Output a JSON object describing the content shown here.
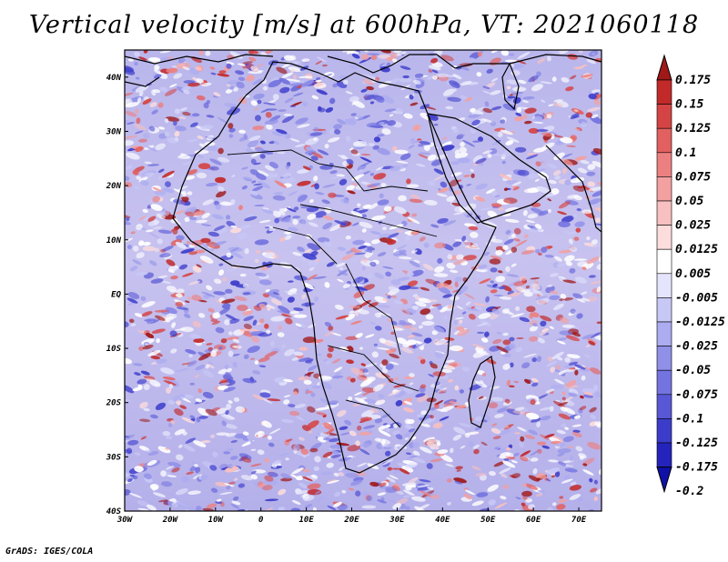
{
  "title": "Vertical velocity [m/s] at 600hPa, VT: 2021060118",
  "credit": "GrADS: IGES/COLA",
  "map": {
    "lat_ticks": [
      "40N",
      "30N",
      "20N",
      "10N",
      "EQ",
      "10S",
      "20S",
      "30S",
      "40S"
    ],
    "lon_ticks": [
      "30W",
      "20W",
      "10W",
      "0",
      "10E",
      "20E",
      "30E",
      "40E",
      "50E",
      "60E",
      "70E"
    ],
    "lat_range": [
      -40,
      45
    ],
    "lon_range": [
      -30,
      75
    ]
  },
  "colorbar": {
    "levels": [
      "0.175",
      "0.15",
      "0.125",
      "0.1",
      "0.075",
      "0.05",
      "0.025",
      "0.0125",
      "0.005",
      "-0.005",
      "-0.0125",
      "-0.025",
      "-0.05",
      "-0.075",
      "-0.1",
      "-0.125",
      "-0.175",
      "-0.2"
    ],
    "colors": [
      "#a01818",
      "#c22a2a",
      "#d54444",
      "#e26060",
      "#ec8080",
      "#f3a0a0",
      "#f8c0c0",
      "#fcdcdc",
      "#ffffff",
      "#e4e4fc",
      "#c8c8f6",
      "#acacf0",
      "#9090e8",
      "#7474e0",
      "#5858d6",
      "#3c3ccb",
      "#2424bc",
      "#1010a8"
    ],
    "top_color": "#a01818",
    "bottom_color": "#1010a8"
  },
  "accent_colors": {
    "positive": "#c22a2a",
    "negative": "#3c3ccb"
  }
}
